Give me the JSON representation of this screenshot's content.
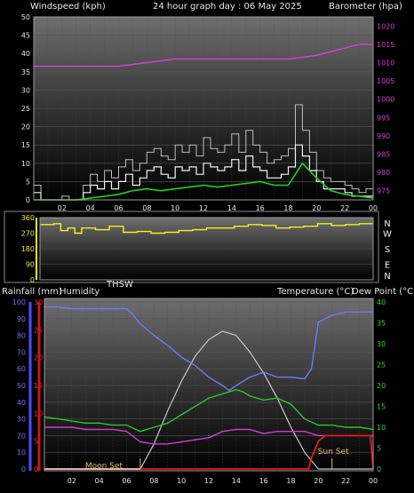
{
  "colors": {
    "background": "#000000",
    "wind_speed": "#f2f2f2",
    "wind_avg": "#1fd21f",
    "barometer": "#d640d6",
    "direction": "#f2f21a",
    "humidity": "#6f78ff",
    "rainfall": "#e21b1b",
    "temperature": "#2bc62b",
    "dew_point": "#d33cd3",
    "thsw": "#c8c8c8",
    "sun_moon": "#e0c060",
    "axis_left": "#7272ff",
    "axis_rain": "#ff2d2d",
    "axis_green": "#31d831"
  },
  "chart_data": [
    {
      "type": "line",
      "title": "24 hour graph day : 06 May 2025",
      "ylabel": "Windspeed (kph)",
      "y2label": "Barometer (hpa)",
      "x_ticks": [
        "02",
        "04",
        "06",
        "08",
        "10",
        "12",
        "14",
        "16",
        "18",
        "20",
        "22",
        "00"
      ],
      "xlim": [
        0,
        24
      ],
      "ylim": [
        0,
        50
      ],
      "y_ticks": [
        0,
        5,
        10,
        15,
        20,
        25,
        30,
        35,
        40,
        45,
        50
      ],
      "y2lim": [
        972.5,
        1022.5
      ],
      "y2_ticks": [
        975,
        980,
        985,
        990,
        995,
        1000,
        1005,
        1010,
        1015,
        1020
      ],
      "grid": true,
      "series": [
        {
          "name": "Windspeed (kph)",
          "axis": "left",
          "x": [
            0,
            0.5,
            1,
            1.5,
            2,
            2.5,
            3,
            3.5,
            4,
            4.5,
            5,
            5.5,
            6,
            6.5,
            7,
            7.5,
            8,
            8.5,
            9,
            9.5,
            10,
            10.5,
            11,
            11.5,
            12,
            12.5,
            13,
            13.5,
            14,
            14.5,
            15,
            15.5,
            16,
            16.5,
            17,
            17.5,
            18,
            18.5,
            19,
            19.5,
            20,
            20.5,
            21,
            21.5,
            22,
            22.5,
            23,
            23.5,
            24
          ],
          "values": [
            2,
            0,
            0,
            0,
            0,
            0,
            0,
            2,
            4,
            3,
            5,
            3,
            5,
            7,
            4,
            6,
            8,
            9,
            7,
            6,
            9,
            8,
            9,
            7,
            10,
            9,
            8,
            9,
            11,
            8,
            12,
            9,
            8,
            6,
            6,
            7,
            9,
            15,
            12,
            8,
            5,
            3,
            3,
            3,
            2,
            1,
            1,
            1,
            2
          ]
        },
        {
          "name": "Wind gust (kph)",
          "axis": "left",
          "x": [
            0,
            0.5,
            1,
            1.5,
            2,
            2.5,
            3,
            3.5,
            4,
            4.5,
            5,
            5.5,
            6,
            6.5,
            7,
            7.5,
            8,
            8.5,
            9,
            9.5,
            10,
            10.5,
            11,
            11.5,
            12,
            12.5,
            13,
            13.5,
            14,
            14.5,
            15,
            15.5,
            16,
            16.5,
            17,
            17.5,
            18,
            18.5,
            19,
            19.5,
            20,
            20.5,
            21,
            21.5,
            22,
            22.5,
            23,
            23.5,
            24
          ],
          "values": [
            4,
            0,
            0,
            0,
            1,
            0,
            0,
            4,
            7,
            5,
            8,
            6,
            9,
            11,
            8,
            10,
            13,
            14,
            12,
            11,
            15,
            13,
            15,
            12,
            17,
            14,
            13,
            15,
            18,
            13,
            19,
            15,
            13,
            10,
            11,
            12,
            14,
            26,
            19,
            13,
            8,
            6,
            5,
            5,
            4,
            3,
            2,
            3,
            4
          ]
        },
        {
          "name": "Average wind (kph)",
          "axis": "left",
          "x": [
            0,
            1,
            2,
            3,
            4,
            5,
            6,
            7,
            8,
            9,
            10,
            11,
            12,
            13,
            14,
            15,
            16,
            17,
            18,
            19,
            20,
            21,
            22,
            23,
            24
          ],
          "values": [
            0,
            0,
            0,
            0,
            0.5,
            1,
            1.5,
            2.5,
            3,
            2.5,
            3,
            3.5,
            4,
            3.5,
            4,
            4.5,
            5,
            4,
            4,
            10,
            6,
            2.5,
            1.5,
            1,
            0.5
          ]
        },
        {
          "name": "Barometer (hpa)",
          "axis": "right",
          "x": [
            0,
            2,
            4,
            6,
            8,
            10,
            12,
            14,
            16,
            18,
            20,
            22,
            23,
            24
          ],
          "values": [
            1009,
            1009,
            1009,
            1009,
            1010,
            1011,
            1011,
            1011,
            1011,
            1011,
            1012,
            1014,
            1015,
            1015
          ]
        }
      ]
    },
    {
      "type": "line",
      "xlim": [
        0,
        24
      ],
      "ylim": [
        0,
        360
      ],
      "y_ticks": [
        0,
        90,
        180,
        270,
        360
      ],
      "right_labels": [
        "N",
        "W",
        "S",
        "E",
        "N"
      ],
      "grid": true,
      "series": [
        {
          "name": "Wind direction",
          "x": [
            0,
            1,
            1.5,
            2,
            2.5,
            3,
            4,
            5,
            6,
            7,
            8,
            9,
            10,
            11,
            12,
            13,
            14,
            15,
            16,
            17,
            18,
            19,
            20,
            21,
            22,
            23,
            24
          ],
          "values": [
            320,
            325,
            285,
            300,
            270,
            300,
            290,
            310,
            275,
            280,
            270,
            275,
            285,
            290,
            300,
            300,
            310,
            320,
            315,
            300,
            305,
            310,
            325,
            315,
            320,
            325,
            325
          ]
        }
      ]
    },
    {
      "type": "line",
      "xlim": [
        0,
        24
      ],
      "ylabel": "Rainfall (mm)",
      "ylabel2": "Humidity",
      "label_thsw": "THSW",
      "y2label": "Temperature (°C)",
      "y3label": "Dew Point (°C)",
      "humidity_ticks": [
        0,
        10,
        20,
        30,
        40,
        50,
        60,
        70,
        80,
        90,
        100
      ],
      "rain_ticks": [
        0,
        5,
        10,
        15,
        20,
        25,
        30
      ],
      "rain_lim": [
        0,
        30
      ],
      "temp_ticks": [
        0,
        5,
        10,
        15,
        20,
        25,
        30,
        35,
        40
      ],
      "temp_lim": [
        0,
        40
      ],
      "grid": true,
      "annotations": [
        {
          "text": "Moon Set",
          "x": 7
        },
        {
          "text": "Sun Set",
          "x": 21
        }
      ],
      "series": [
        {
          "name": "Humidity",
          "axis": "humidity",
          "x": [
            0,
            1,
            2,
            3,
            4,
            5,
            6,
            6.5,
            7,
            8,
            9,
            10,
            11,
            12,
            13,
            13.5,
            14,
            15,
            16,
            17,
            18,
            19,
            19.5,
            20,
            21,
            22,
            23,
            24
          ],
          "values": [
            97,
            97,
            96,
            96,
            96,
            96,
            96,
            92,
            87,
            80,
            74,
            67,
            62,
            55,
            50,
            47,
            50,
            55,
            58,
            55,
            55,
            54,
            60,
            88,
            92,
            94,
            94,
            94
          ]
        },
        {
          "name": "Temperature (°C)",
          "axis": "temp",
          "x": [
            0,
            1,
            2,
            3,
            4,
            5,
            6,
            7,
            8,
            9,
            10,
            11,
            12,
            13,
            14,
            14.5,
            15,
            16,
            17,
            18,
            19,
            20,
            21,
            22,
            23,
            24
          ],
          "values": [
            12.5,
            12,
            11.5,
            11,
            11,
            10.5,
            10.5,
            9,
            10,
            11,
            13,
            15,
            17,
            18,
            19,
            18.5,
            17.5,
            16.5,
            17,
            15.5,
            12,
            10.5,
            10.5,
            10,
            10,
            9.5
          ]
        },
        {
          "name": "Dew Point (°C)",
          "axis": "temp",
          "x": [
            0,
            1,
            2,
            3,
            4,
            5,
            6,
            7,
            8,
            9,
            10,
            11,
            12,
            13,
            14,
            15,
            16,
            17,
            18,
            19,
            20,
            21,
            22,
            23,
            24
          ],
          "values": [
            10,
            10,
            10,
            9.5,
            9.5,
            9.5,
            9,
            6.5,
            6,
            6,
            6.5,
            7,
            7.5,
            9,
            9.5,
            9.5,
            8.5,
            9,
            9,
            9,
            8,
            8,
            8,
            8,
            8
          ]
        },
        {
          "name": "THSW",
          "axis": "temp",
          "x": [
            0,
            7,
            8,
            9,
            10,
            11,
            12,
            13,
            14,
            15,
            16,
            17,
            18,
            19,
            20,
            21,
            24
          ],
          "values": [
            0,
            0,
            6,
            14,
            21,
            27,
            31,
            33,
            32,
            28,
            23,
            17,
            10,
            4,
            0,
            0,
            0
          ]
        },
        {
          "name": "Rainfall (mm)",
          "axis": "rain",
          "x": [
            0,
            19.3,
            19.5,
            20,
            20.5,
            23.8,
            24
          ],
          "values": [
            0,
            0,
            2,
            5,
            6,
            6,
            0
          ]
        }
      ]
    }
  ]
}
